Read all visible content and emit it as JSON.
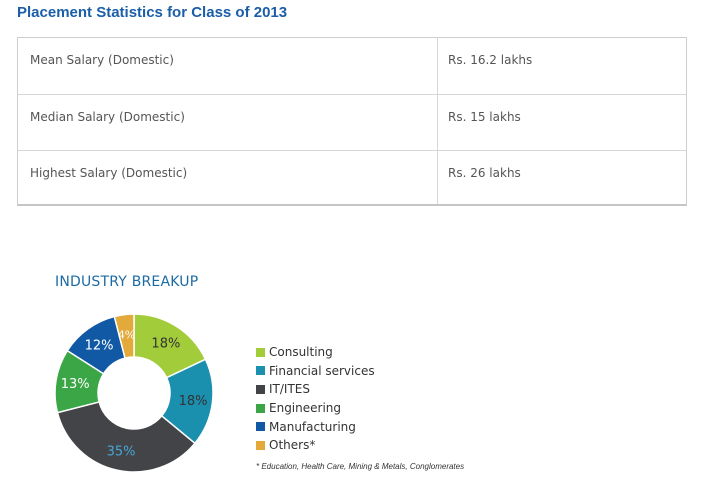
{
  "page": {
    "title": "Placement Statistics for Class of 2013"
  },
  "stats_table": {
    "rows": [
      {
        "label": "Mean Salary (Domestic)",
        "value": "Rs. 16.2 lakhs"
      },
      {
        "label": "Median Salary (Domestic)",
        "value": "Rs. 15 lakhs"
      },
      {
        "label": "Highest Salary (Domestic)",
        "value": "Rs. 26 lakhs"
      }
    ]
  },
  "chart_data": {
    "type": "pie",
    "variant": "donut",
    "title": "INDUSTRY BREAKUP",
    "categories": [
      "Consulting",
      "Financial services",
      "IT/ITES",
      "Engineering",
      "Manufacturing",
      "Others*"
    ],
    "values": [
      18,
      18,
      35,
      13,
      12,
      4
    ],
    "labels": [
      "18%",
      "18%",
      "35%",
      "13%",
      "12%",
      "4%"
    ],
    "colors": [
      "#a3cc3a",
      "#1a8fae",
      "#434447",
      "#3aa645",
      "#1159a5",
      "#e3a93a"
    ],
    "label_colors": [
      "#333333",
      "#333333",
      "#46a6d6",
      "#ffffff",
      "#ffffff",
      "#ffffff"
    ],
    "legend_position": "right",
    "footnote": "* Education, Health Care, Mining & Metals, Conglomerates"
  }
}
